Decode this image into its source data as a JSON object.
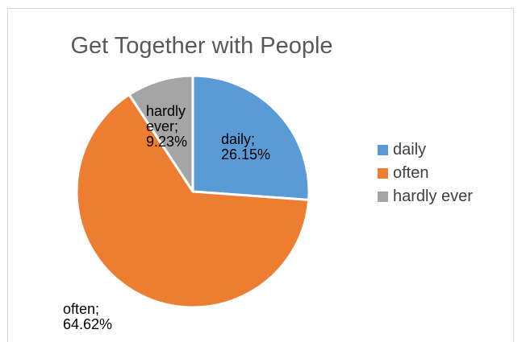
{
  "chart_data": {
    "type": "pie",
    "title": "Get Together with People",
    "categories": [
      "daily",
      "often",
      "hardly ever"
    ],
    "values": [
      26.15,
      64.62,
      9.23
    ],
    "value_labels": [
      "26.15%",
      "64.62%",
      "9.23%"
    ],
    "data_labels": [
      {
        "category": "daily;",
        "value": "26.15%"
      },
      {
        "category": "often;",
        "value": "64.62%"
      },
      {
        "category_lines": [
          "hardly",
          "ever;"
        ],
        "value": "9.23%"
      }
    ],
    "colors": [
      "#5b9bd5",
      "#ed7d31",
      "#a5a5a5"
    ],
    "legend_position": "right"
  }
}
